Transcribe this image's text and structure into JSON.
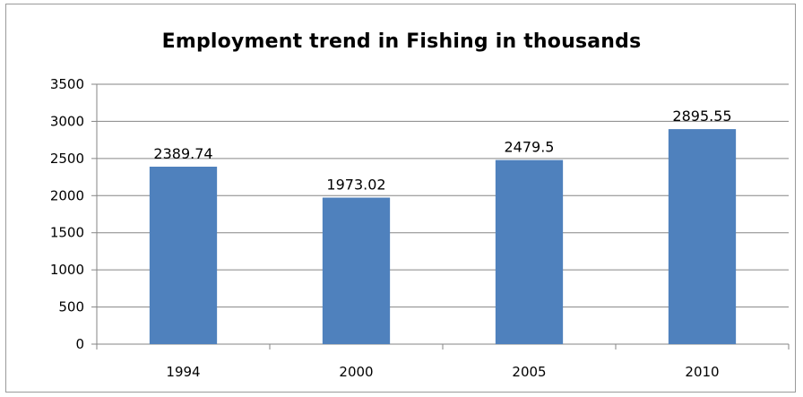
{
  "chart_data": {
    "type": "bar",
    "title": "Employment trend in Fishing in thousands",
    "categories": [
      "1994",
      "2000",
      "2005",
      "2010"
    ],
    "values": [
      2389.74,
      1973.02,
      2479.5,
      2895.55
    ],
    "data_labels": [
      "2389.74",
      "1973.02",
      "2479.5",
      "2895.55"
    ],
    "ylim": [
      0,
      3500
    ],
    "yticks": [
      0,
      500,
      1000,
      1500,
      2000,
      2500,
      3000,
      3500
    ],
    "ytick_labels": [
      "0",
      "500",
      "1000",
      "1500",
      "2000",
      "2500",
      "3000",
      "3500"
    ],
    "xlabel": "",
    "ylabel": "",
    "grid": true,
    "legend": "none",
    "bar_color": "#4f81bd",
    "grid_color": "#868686"
  }
}
